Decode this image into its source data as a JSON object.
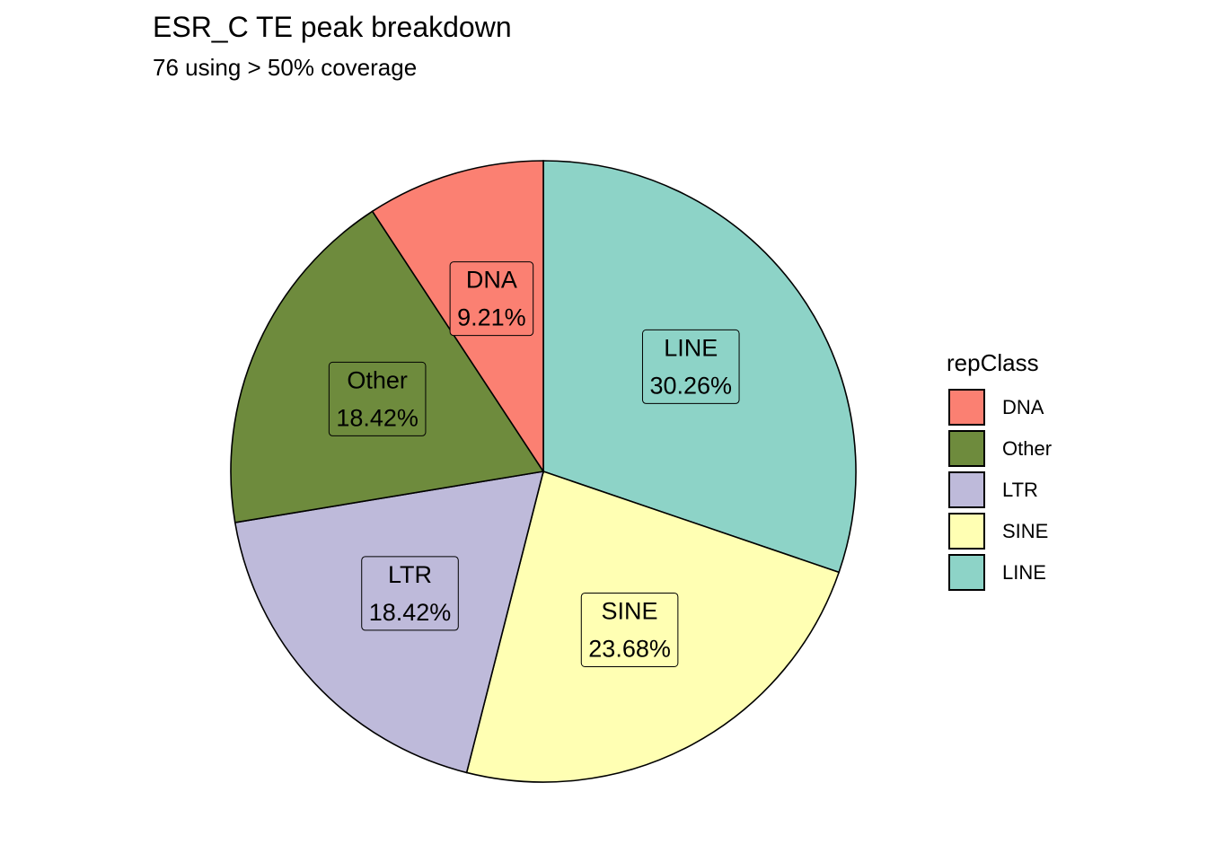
{
  "chart_data": {
    "type": "pie",
    "title": "ESR_C TE peak breakdown",
    "subtitle": "76 using > 50% coverage",
    "legend_title": "repClass",
    "legend_placement": "right",
    "categories": [
      "DNA",
      "Other",
      "LTR",
      "SINE",
      "LINE"
    ],
    "values": [
      9.21,
      18.42,
      18.42,
      23.68,
      30.26
    ],
    "labels": [
      "9.21%",
      "18.42%",
      "18.42%",
      "23.68%",
      "30.26%"
    ],
    "colors": [
      "#FB8072",
      "#6E8B3D",
      "#BEBADA",
      "#FFFFB3",
      "#8DD3C7"
    ],
    "slice_order_clockwise_from_top": [
      "LINE",
      "SINE",
      "LTR",
      "Other",
      "DNA"
    ]
  }
}
